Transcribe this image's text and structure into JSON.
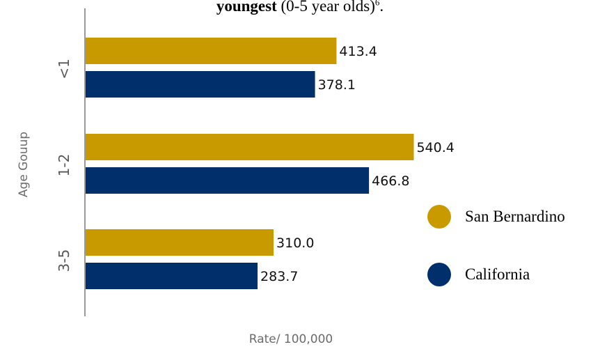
{
  "title": {
    "bold": "youngest",
    "rest": " (0-5 year olds)",
    "superscript": "6",
    "end": "."
  },
  "chart_data": {
    "type": "bar",
    "orientation": "horizontal",
    "categories": [
      "<1",
      "1-2",
      "3-5"
    ],
    "series": [
      {
        "name": "San Bernardino",
        "values": [
          413.4,
          540.4,
          310.0
        ],
        "labels": [
          "413.4",
          "540.4",
          "310.0"
        ],
        "color": "#c99a00"
      },
      {
        "name": "California",
        "values": [
          378.1,
          466.8,
          283.7
        ],
        "labels": [
          "378.1",
          "466.8",
          "283.7"
        ],
        "color": "#002f6c"
      }
    ],
    "xlabel": "Rate/ 100,000",
    "ylabel": "Age Gouup",
    "xlim": [
      0,
      800
    ],
    "grid": false,
    "legend_position": "right"
  }
}
